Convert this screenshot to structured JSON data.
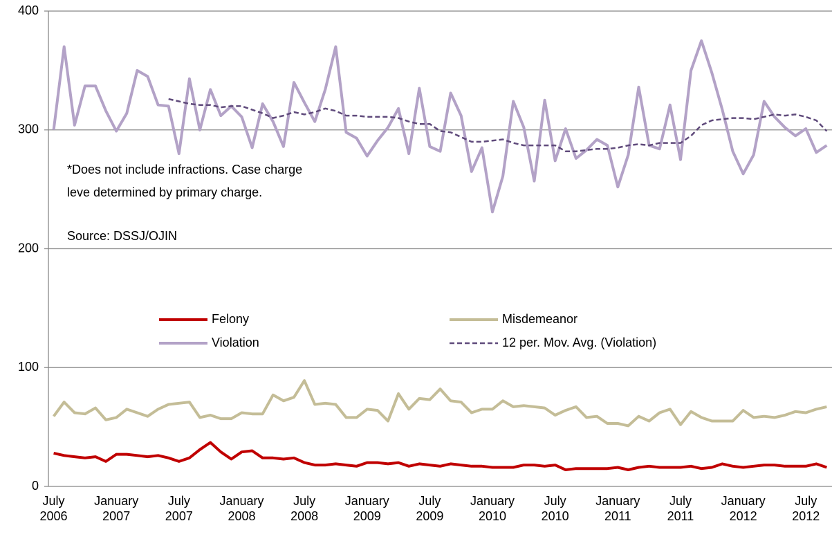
{
  "chart_data": {
    "type": "line",
    "categories": [
      "July 2006",
      null,
      null,
      null,
      null,
      null,
      "January 2007",
      null,
      null,
      null,
      null,
      null,
      "July 2007",
      null,
      null,
      null,
      null,
      null,
      "January 2008",
      null,
      null,
      null,
      null,
      null,
      "July 2008",
      null,
      null,
      null,
      null,
      null,
      "January 2009",
      null,
      null,
      null,
      null,
      null,
      "July 2009",
      null,
      null,
      null,
      null,
      null,
      "January 2010",
      null,
      null,
      null,
      null,
      null,
      "July 2010",
      null,
      null,
      null,
      null,
      null,
      "January 2011",
      null,
      null,
      null,
      null,
      null,
      "July 2011",
      null,
      null,
      null,
      null,
      null,
      "January 2012",
      null,
      null,
      null,
      null,
      null,
      "July 2012",
      null,
      null
    ],
    "series": [
      {
        "name": "Felony",
        "color": "#c00000",
        "dash": false,
        "values": [
          28,
          26,
          25,
          24,
          25,
          21,
          27,
          27,
          26,
          25,
          26,
          24,
          21,
          24,
          31,
          37,
          29,
          23,
          29,
          30,
          24,
          24,
          23,
          24,
          20,
          18,
          18,
          19,
          18,
          17,
          20,
          20,
          19,
          20,
          17,
          19,
          18,
          17,
          19,
          18,
          17,
          17,
          16,
          16,
          16,
          18,
          18,
          17,
          18,
          14,
          15,
          15,
          15,
          15,
          16,
          14,
          16,
          17,
          16,
          16,
          16,
          17,
          15,
          16,
          19,
          17,
          16,
          17,
          18,
          18,
          17,
          17,
          17,
          19,
          16
        ]
      },
      {
        "name": "Misdemeanor",
        "color": "#c4bd97",
        "dash": false,
        "values": [
          59,
          71,
          62,
          61,
          66,
          56,
          58,
          65,
          62,
          59,
          65,
          69,
          70,
          71,
          58,
          60,
          57,
          57,
          62,
          61,
          61,
          77,
          72,
          75,
          89,
          69,
          70,
          69,
          58,
          58,
          65,
          64,
          55,
          78,
          65,
          74,
          73,
          82,
          72,
          71,
          62,
          65,
          65,
          72,
          67,
          68,
          67,
          66,
          60,
          64,
          67,
          58,
          59,
          53,
          53,
          51,
          59,
          55,
          62,
          65,
          52,
          63,
          58,
          55,
          55,
          55,
          64,
          58,
          59,
          58,
          60,
          63,
          62,
          65,
          67
        ]
      },
      {
        "name": "Violation",
        "color": "#b3a2c7",
        "dash": false,
        "values": [
          300,
          370,
          304,
          337,
          337,
          316,
          299,
          314,
          350,
          345,
          321,
          320,
          280,
          343,
          300,
          334,
          312,
          320,
          311,
          285,
          322,
          307,
          286,
          340,
          323,
          307,
          334,
          370,
          298,
          293,
          278,
          291,
          302,
          318,
          280,
          335,
          286,
          282,
          331,
          312,
          265,
          285,
          231,
          261,
          324,
          302,
          257,
          325,
          274,
          301,
          276,
          283,
          292,
          287,
          252,
          279,
          336,
          287,
          284,
          321,
          275,
          350,
          375,
          348,
          317,
          282,
          263,
          279,
          324,
          311,
          302,
          295,
          301,
          281,
          287
        ]
      },
      {
        "name": "12 per. Mov. Avg. (Violation)",
        "color": "#5f4a7b",
        "dash": true,
        "values": [
          null,
          null,
          null,
          null,
          null,
          null,
          null,
          null,
          null,
          null,
          null,
          326,
          324,
          322,
          321,
          321,
          319,
          320,
          320,
          317,
          314,
          310,
          312,
          315,
          313,
          315,
          318,
          316,
          312,
          312,
          311,
          311,
          311,
          310,
          307,
          305,
          305,
          299,
          298,
          294,
          290,
          290,
          291,
          292,
          289,
          287,
          287,
          287,
          287,
          282,
          282,
          283,
          284,
          284,
          285,
          287,
          288,
          287,
          289,
          289,
          289,
          295,
          304,
          308,
          309,
          310,
          310,
          309,
          311,
          313,
          312,
          313,
          311,
          308,
          299
        ]
      }
    ],
    "ylim": [
      0,
      400
    ],
    "yticks": [
      0,
      100,
      200,
      300,
      400
    ],
    "grid": true,
    "legend": "center",
    "annotations": [
      "*Does not include infractions. Case charge",
      "leve determined by primary charge.",
      "Source: DSSJ/OJIN"
    ]
  }
}
